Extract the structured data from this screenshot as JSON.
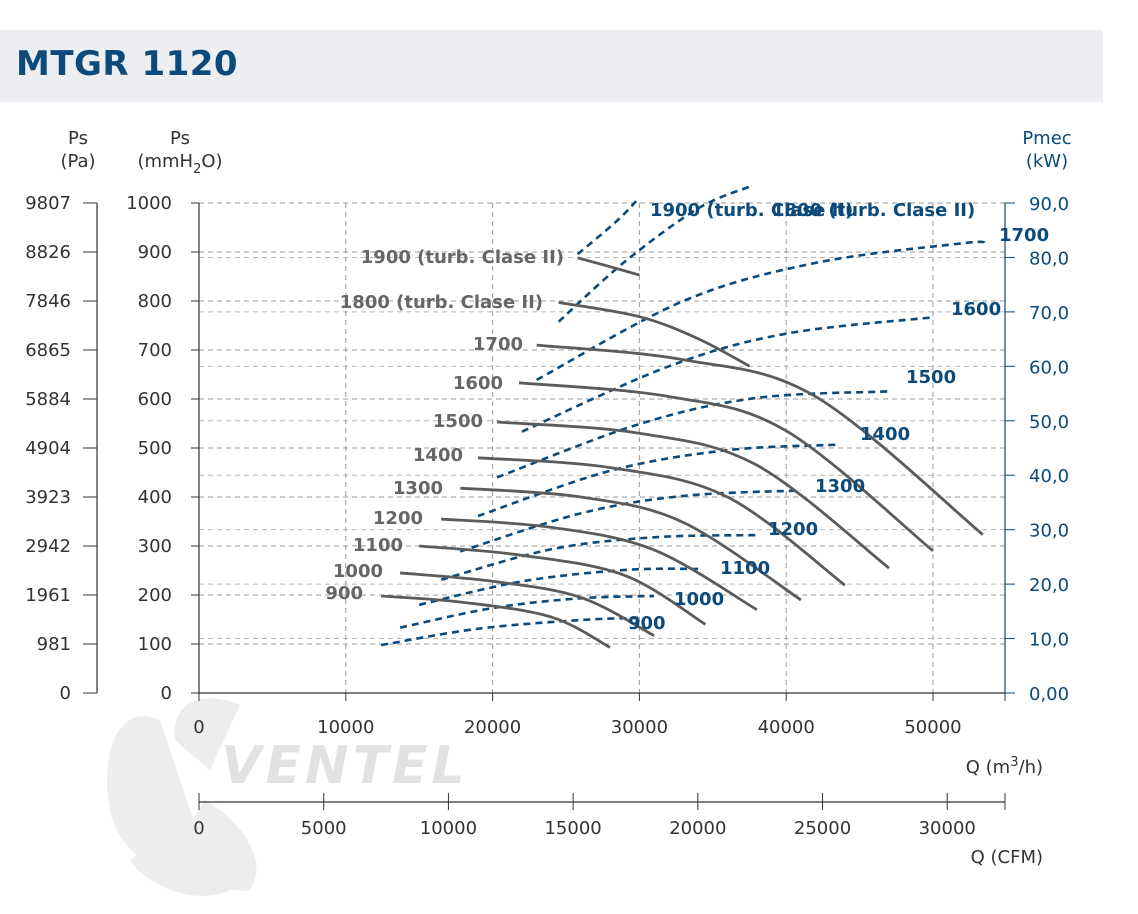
{
  "header": {
    "title": "MTGR 1120"
  },
  "colors": {
    "accent": "#0b4a7a",
    "curve": "#5b5b5b",
    "grid": "#9a9a9a",
    "header_bg": "#eceef1"
  },
  "axes": {
    "ps_pa_title": "Ps",
    "ps_pa_unit": "(Pa)",
    "ps_mm_title": "Ps",
    "ps_mm_unit_a": "(mmH",
    "ps_mm_unit_sub": "2",
    "ps_mm_unit_b": "O)",
    "pmec_title": "Pmec",
    "pmec_unit": "(kW)",
    "q_m3h_label_a": "Q (m",
    "q_m3h_label_sup": "3",
    "q_m3h_label_b": "/h)",
    "q_cfm_label": "Q (CFM)",
    "watermark": "VENTEL"
  },
  "chart_data": {
    "type": "line",
    "xlabel": "Q (m3/h)",
    "xlim": [
      0,
      55000
    ],
    "ylim": [
      0,
      1000
    ],
    "y2lim": [
      0,
      90
    ],
    "x_ticks": [
      0,
      10000,
      20000,
      30000,
      40000,
      50000
    ],
    "x_ticks_cfm": [
      0,
      5000,
      10000,
      15000,
      20000,
      25000,
      30000
    ],
    "y_ticks_mmh2o": [
      0,
      100,
      200,
      300,
      400,
      500,
      600,
      700,
      800,
      900,
      1000
    ],
    "y_ticks_pa": [
      "0",
      "981",
      "1961",
      "2942",
      "3923",
      "4904",
      "5884",
      "6865",
      "7846",
      "8826",
      "9807"
    ],
    "y2_ticks": [
      "0,00",
      "10,0",
      "20,0",
      "30,0",
      "40,0",
      "50,0",
      "60,0",
      "70,0",
      "80,0",
      "90,0"
    ],
    "pressure_curves": [
      {
        "name": "900",
        "points": [
          [
            12400,
            198
          ],
          [
            18000,
            185
          ],
          [
            24000,
            155
          ],
          [
            28000,
            93
          ]
        ]
      },
      {
        "name": "1000",
        "points": [
          [
            13700,
            245
          ],
          [
            20000,
            228
          ],
          [
            26000,
            195
          ],
          [
            31000,
            117
          ]
        ]
      },
      {
        "name": "1100",
        "points": [
          [
            15000,
            300
          ],
          [
            22000,
            281
          ],
          [
            29000,
            240
          ],
          [
            34500,
            140
          ]
        ]
      },
      {
        "name": "1200",
        "points": [
          [
            16500,
            355
          ],
          [
            24000,
            338
          ],
          [
            31000,
            292
          ],
          [
            38000,
            170
          ]
        ]
      },
      {
        "name": "1300",
        "points": [
          [
            17800,
            418
          ],
          [
            26000,
            400
          ],
          [
            33000,
            348
          ],
          [
            41000,
            190
          ]
        ]
      },
      {
        "name": "1400",
        "points": [
          [
            19000,
            480
          ],
          [
            28000,
            460
          ],
          [
            36000,
            400
          ],
          [
            44000,
            220
          ]
        ]
      },
      {
        "name": "1500",
        "points": [
          [
            20300,
            553
          ],
          [
            30000,
            530
          ],
          [
            38000,
            465
          ],
          [
            47000,
            255
          ]
        ]
      },
      {
        "name": "1600",
        "points": [
          [
            21800,
            633
          ],
          [
            32000,
            605
          ],
          [
            40000,
            535
          ],
          [
            50000,
            290
          ]
        ]
      },
      {
        "name": "1700",
        "points": [
          [
            23000,
            710
          ],
          [
            33000,
            680
          ],
          [
            42000,
            605
          ],
          [
            53400,
            323
          ]
        ]
      },
      {
        "name": "1800 (turb. Clase II)",
        "points": [
          [
            24500,
            797
          ],
          [
            30000,
            768
          ],
          [
            34000,
            723
          ],
          [
            37500,
            667
          ]
        ]
      },
      {
        "name": "1900 (turb. Clase II)",
        "points": [
          [
            25800,
            888
          ],
          [
            28000,
            870
          ],
          [
            30000,
            853
          ]
        ]
      }
    ],
    "power_curves": [
      {
        "name": "900",
        "points": [
          [
            12400,
            8.8
          ],
          [
            19000,
            11.8
          ],
          [
            26000,
            13.4
          ],
          [
            30000,
            13.8
          ]
        ]
      },
      {
        "name": "1000",
        "points": [
          [
            13700,
            12.0
          ],
          [
            20000,
            15.6
          ],
          [
            26000,
            17.4
          ],
          [
            31000,
            17.8
          ]
        ]
      },
      {
        "name": "1100",
        "points": [
          [
            15000,
            16.2
          ],
          [
            22000,
            20.5
          ],
          [
            29000,
            22.6
          ],
          [
            34000,
            22.8
          ]
        ]
      },
      {
        "name": "1200",
        "points": [
          [
            16500,
            20.8
          ],
          [
            24000,
            26.4
          ],
          [
            31000,
            28.6
          ],
          [
            38000,
            29.0
          ]
        ]
      },
      {
        "name": "1300",
        "points": [
          [
            17800,
            26.0
          ],
          [
            26000,
            33.0
          ],
          [
            33000,
            36.2
          ],
          [
            41000,
            37.2
          ]
        ]
      },
      {
        "name": "1400",
        "points": [
          [
            19000,
            32.5
          ],
          [
            28000,
            40.8
          ],
          [
            36000,
            44.6
          ],
          [
            43500,
            45.6
          ]
        ]
      },
      {
        "name": "1500",
        "points": [
          [
            20300,
            39.6
          ],
          [
            30000,
            49.4
          ],
          [
            38000,
            54.2
          ],
          [
            47000,
            55.4
          ]
        ]
      },
      {
        "name": "1600",
        "points": [
          [
            22000,
            48.0
          ],
          [
            32000,
            60.0
          ],
          [
            40000,
            66.0
          ],
          [
            50000,
            69.0
          ]
        ]
      },
      {
        "name": "1700",
        "points": [
          [
            23000,
            57.5
          ],
          [
            33000,
            72.0
          ],
          [
            42000,
            79.0
          ],
          [
            52000,
            82.6
          ],
          [
            53600,
            82.6
          ]
        ]
      },
      {
        "name": "1800 (turb. Clase II)",
        "points": [
          [
            24500,
            68.2
          ],
          [
            29000,
            79.2
          ],
          [
            34000,
            89.0
          ],
          [
            37500,
            93.0
          ]
        ]
      },
      {
        "name": "1900 (turb. Clase II)",
        "points": [
          [
            25800,
            80.6
          ],
          [
            28500,
            86.8
          ],
          [
            30000,
            91.0
          ]
        ]
      }
    ]
  }
}
